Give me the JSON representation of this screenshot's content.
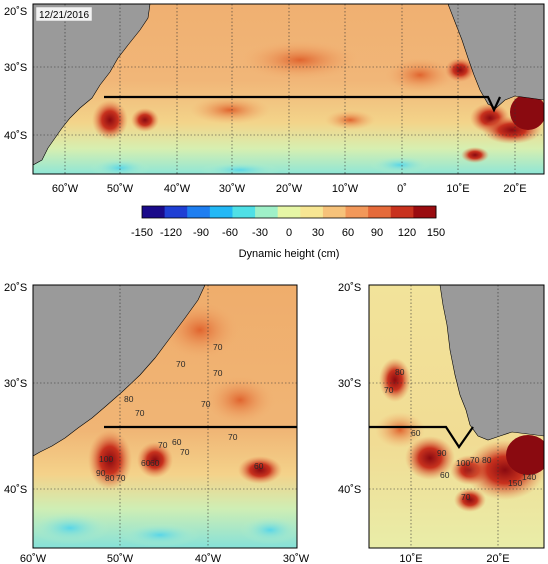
{
  "date": "12/21/2016",
  "colorbar": {
    "title": "Dynamic height (cm)",
    "ticks": [
      "-150",
      "-120",
      "-90",
      "-60",
      "-30",
      "0",
      "30",
      "60",
      "90",
      "120",
      "150"
    ],
    "colors": [
      "#1a0a8a",
      "#1f3fd4",
      "#1e7ef0",
      "#23b8f5",
      "#4fe0e6",
      "#9ff0c8",
      "#e6f6a6",
      "#f7e693",
      "#f6c27a",
      "#f2985a",
      "#e56a3a",
      "#c8321e",
      "#9a0c10"
    ]
  },
  "top_map": {
    "lat_labels": [
      "20˚S",
      "30˚S",
      "40˚S"
    ],
    "lon_labels": [
      "60˚W",
      "50˚W",
      "40˚W",
      "30˚W",
      "20˚W",
      "10˚W",
      "0˚",
      "10˚E",
      "20˚E"
    ]
  },
  "left_map": {
    "lat_labels": [
      "20˚S",
      "30˚S",
      "40˚S"
    ],
    "lon_labels": [
      "60˚W",
      "50˚W",
      "40˚W",
      "30˚W"
    ],
    "contour_labels": [
      "70",
      "70",
      "70",
      "70",
      "70",
      "80",
      "70",
      "60",
      "70",
      "70",
      "100",
      "90",
      "80",
      "70",
      "60",
      "60",
      "60"
    ]
  },
  "right_map": {
    "lat_labels": [
      "20˚S",
      "30˚S",
      "40˚S"
    ],
    "lon_labels": [
      "10˚E",
      "20˚E"
    ],
    "contour_labels": [
      "80",
      "70",
      "90",
      "100",
      "60",
      "70",
      "80",
      "150",
      "140",
      "70",
      "60"
    ]
  }
}
